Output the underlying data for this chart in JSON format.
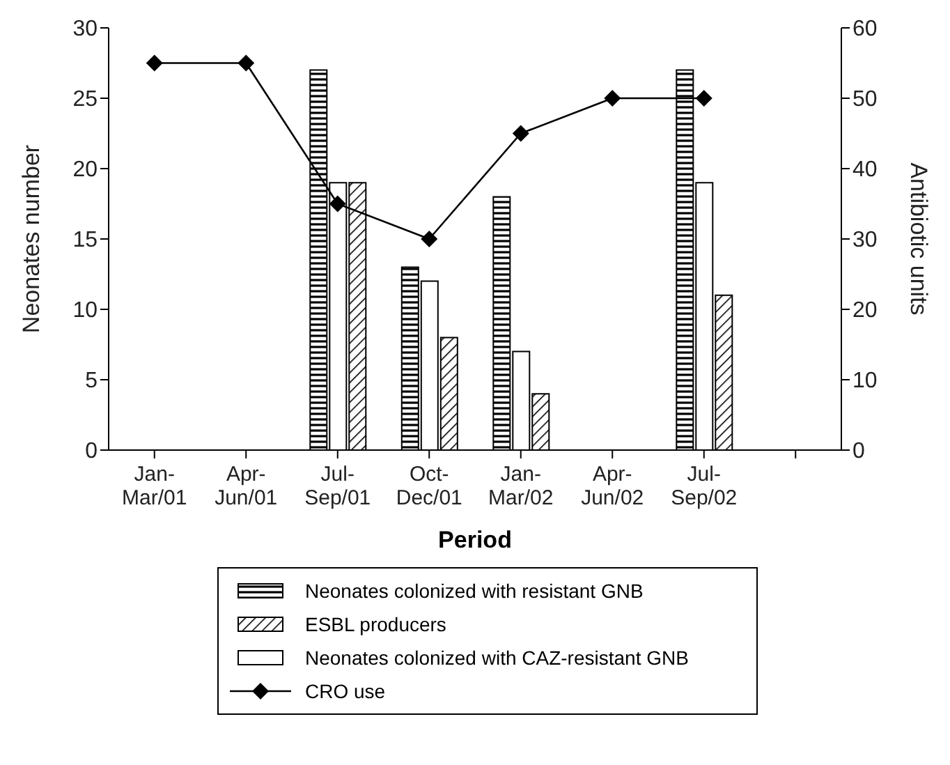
{
  "chart_data": {
    "type": "bar",
    "xlabel": "Period",
    "ylabel": "Neonates number",
    "y2label": "Antibiotic units",
    "categories": [
      "Jan-Mar/01",
      "Apr-Jun/01",
      "Jul-Sep/01",
      "Oct-Dec/01",
      "Jan-Mar/02",
      "Apr-Jun/02",
      "Jul-Sep/02",
      null
    ],
    "series": [
      {
        "name": "Neonates colonized with resistant GNB",
        "color": "#000000",
        "values": [
          null,
          null,
          27,
          13,
          18,
          null,
          27,
          null
        ]
      },
      {
        "name": "Neonates colonized with CAZ-resistant GNB",
        "color": "#ffffff",
        "values": [
          null,
          null,
          19,
          12,
          7,
          null,
          19,
          null
        ]
      },
      {
        "name": "ESBL producers",
        "color": "#000000",
        "values": [
          null,
          null,
          19,
          8,
          4,
          null,
          11,
          null
        ]
      },
      {
        "name": "CRO use",
        "type": "line",
        "axis": "y2",
        "color": "#000000",
        "marker": "diamond",
        "line_style": "solid",
        "values": [
          55,
          55,
          35,
          30,
          45,
          50,
          50,
          null
        ]
      }
    ],
    "ylim": [
      0,
      30
    ],
    "yticks": [
      0,
      5,
      10,
      15,
      20,
      25,
      30
    ],
    "y2lim": [
      0,
      60
    ],
    "y2ticks": [
      0,
      10,
      20,
      30,
      40,
      50,
      60
    ],
    "grid": false,
    "legend": "bottom"
  }
}
